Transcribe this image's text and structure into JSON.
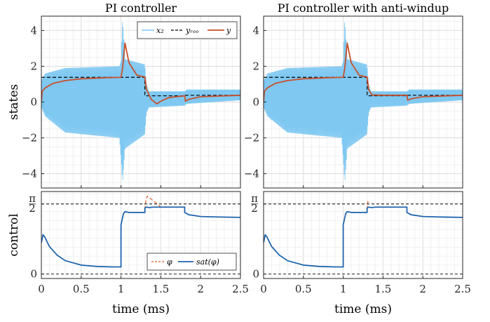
{
  "chart_data": [
    {
      "type": "line",
      "panel": "states",
      "title": "PI controller",
      "xlabel": "time (ms)",
      "ylabel": "states",
      "xlim": [
        0,
        2.5
      ],
      "ylim": [
        -4.8,
        4.8
      ],
      "xticks": [
        "0",
        "0.5",
        "1",
        "1.5",
        "2",
        "2.5"
      ],
      "yticks": [
        "-4",
        "-2",
        "0",
        "2",
        "4"
      ],
      "grid": true,
      "legend": {
        "placement": "top-right",
        "entries": [
          "x₂",
          "yᵣₑₒ",
          "y"
        ]
      },
      "series": [
        {
          "name": "x₂",
          "color": "#7ec8f2",
          "style": "oscillation",
          "envelope_x": [
            0,
            0.05,
            0.3,
            0.98,
            1.0,
            1.02,
            1.05,
            1.3,
            1.32,
            1.35,
            1.8,
            1.83,
            2.5
          ],
          "upper": [
            1.2,
            1.6,
            1.9,
            2.0,
            2.3,
            4.7,
            2.4,
            2.1,
            1.0,
            0.6,
            0.6,
            0.7,
            0.7
          ],
          "lower": [
            -0.3,
            -0.8,
            -1.7,
            -2.0,
            -3.2,
            -4.5,
            -2.6,
            -1.8,
            -0.6,
            -0.3,
            -0.2,
            -0.1,
            0.1
          ]
        },
        {
          "name": "yᵣₑₒ",
          "color": "#000000",
          "style": "dashed",
          "x": [
            0,
            1.0,
            1.0,
            1.3,
            1.3,
            1.8,
            1.8,
            2.5
          ],
          "y": [
            1.38,
            1.38,
            1.38,
            1.38,
            0.35,
            0.35,
            0.38,
            0.38
          ]
        },
        {
          "name": "y",
          "color": "#c8502a",
          "x": [
            0,
            0.01,
            0.05,
            0.15,
            0.3,
            0.5,
            0.8,
            1.0,
            1.02,
            1.05,
            1.1,
            1.2,
            1.3,
            1.32,
            1.38,
            1.45,
            1.5,
            1.6,
            1.8,
            1.81,
            1.85,
            2.0,
            2.5
          ],
          "y": [
            0,
            0.6,
            0.8,
            1.05,
            1.2,
            1.3,
            1.36,
            1.38,
            1.9,
            3.3,
            2.2,
            1.5,
            1.4,
            0.7,
            0.15,
            -0.1,
            0.05,
            0.25,
            0.35,
            0.05,
            0.15,
            0.3,
            0.38
          ]
        }
      ]
    },
    {
      "type": "line",
      "panel": "states",
      "title": "PI controller with anti-windup",
      "xlabel": "time (ms)",
      "ylabel": "",
      "xlim": [
        0,
        2.5
      ],
      "ylim": [
        -4.8,
        4.8
      ],
      "xticks": [
        "0",
        "0.5",
        "1",
        "1.5",
        "2",
        "2.5"
      ],
      "yticks": [
        "-4",
        "-2",
        "0",
        "2",
        "4"
      ],
      "grid": true,
      "series": [
        {
          "name": "x₂",
          "color": "#7ec8f2",
          "style": "oscillation",
          "envelope_x": [
            0,
            0.05,
            0.3,
            0.98,
            1.0,
            1.02,
            1.05,
            1.3,
            1.32,
            1.35,
            1.8,
            1.83,
            2.5
          ],
          "upper": [
            1.2,
            1.6,
            1.9,
            2.0,
            2.3,
            4.7,
            2.4,
            2.1,
            1.0,
            0.6,
            0.6,
            0.7,
            0.7
          ],
          "lower": [
            -0.3,
            -0.8,
            -1.7,
            -2.0,
            -3.2,
            -4.5,
            -2.6,
            -1.8,
            -0.6,
            -0.3,
            -0.2,
            -0.1,
            0.1
          ]
        },
        {
          "name": "yᵣₑₒ",
          "color": "#000000",
          "style": "dashed",
          "x": [
            0,
            1.0,
            1.0,
            1.3,
            1.3,
            1.8,
            1.8,
            2.5
          ],
          "y": [
            1.38,
            1.38,
            1.38,
            1.38,
            0.35,
            0.35,
            0.38,
            0.38
          ]
        },
        {
          "name": "y",
          "color": "#c8502a",
          "x": [
            0,
            0.01,
            0.05,
            0.15,
            0.3,
            0.5,
            0.8,
            1.0,
            1.02,
            1.05,
            1.1,
            1.2,
            1.3,
            1.32,
            1.36,
            1.5,
            1.8,
            1.81,
            1.85,
            2.0,
            2.5
          ],
          "y": [
            0,
            0.6,
            0.8,
            1.05,
            1.2,
            1.3,
            1.36,
            1.38,
            1.9,
            3.3,
            2.2,
            1.5,
            1.4,
            0.7,
            0.4,
            0.38,
            0.38,
            0.1,
            0.18,
            0.3,
            0.38
          ]
        }
      ]
    },
    {
      "type": "line",
      "panel": "control",
      "title": "",
      "xlabel": "time (ms)",
      "ylabel": "control",
      "xlim": [
        0,
        2.5
      ],
      "ylim": [
        -0.1,
        1.85
      ],
      "xticks": [
        "0",
        "0.5",
        "1",
        "1.5",
        "2",
        "2.5"
      ],
      "yticks": [
        "0",
        "π/2"
      ],
      "grid": true,
      "reference_lines": [
        0,
        1.5708
      ],
      "legend": {
        "placement": "bottom-right",
        "entries": [
          "φ",
          "sat(φ)"
        ]
      },
      "series": [
        {
          "name": "φ",
          "color": "#e0622a",
          "style": "dashed",
          "x": [
            1.3,
            1.31,
            1.33,
            1.4,
            1.45,
            1.5
          ],
          "y": [
            1.45,
            1.62,
            1.75,
            1.65,
            1.58,
            1.5
          ]
        },
        {
          "name": "sat(φ)",
          "color": "#1f65ad",
          "x": [
            0,
            0.02,
            0.04,
            0.1,
            0.2,
            0.3,
            0.5,
            0.7,
            0.9,
            1.0,
            1.0,
            1.03,
            1.05,
            1.1,
            1.3,
            1.3,
            1.32,
            1.36,
            1.4,
            1.8,
            1.8,
            1.85,
            2.0,
            2.2,
            2.5
          ],
          "y": [
            0.7,
            0.88,
            0.84,
            0.62,
            0.42,
            0.3,
            0.2,
            0.17,
            0.16,
            0.16,
            1.1,
            1.35,
            1.4,
            1.38,
            1.38,
            1.48,
            1.5,
            1.49,
            1.5,
            1.5,
            1.38,
            1.33,
            1.29,
            1.28,
            1.27
          ]
        }
      ]
    },
    {
      "type": "line",
      "panel": "control",
      "title": "",
      "xlabel": "time (ms)",
      "ylabel": "",
      "xlim": [
        0,
        2.5
      ],
      "ylim": [
        -0.1,
        1.85
      ],
      "xticks": [
        "0",
        "0.5",
        "1",
        "1.5",
        "2",
        "2.5"
      ],
      "yticks": [
        "0",
        "π/2"
      ],
      "grid": true,
      "reference_lines": [
        0,
        1.5708
      ],
      "series": [
        {
          "name": "φ",
          "color": "#e0622a",
          "style": "dashed",
          "x": [
            1.3,
            1.31,
            1.32
          ],
          "y": [
            1.45,
            1.63,
            1.56
          ]
        },
        {
          "name": "sat(φ)",
          "color": "#1f65ad",
          "x": [
            0,
            0.02,
            0.04,
            0.1,
            0.2,
            0.3,
            0.5,
            0.7,
            0.9,
            1.0,
            1.0,
            1.03,
            1.05,
            1.1,
            1.3,
            1.3,
            1.32,
            1.36,
            1.4,
            1.8,
            1.8,
            1.85,
            2.0,
            2.2,
            2.5
          ],
          "y": [
            0.7,
            0.88,
            0.84,
            0.62,
            0.42,
            0.3,
            0.2,
            0.17,
            0.16,
            0.16,
            1.1,
            1.35,
            1.4,
            1.38,
            1.38,
            1.48,
            1.5,
            1.49,
            1.5,
            1.5,
            1.38,
            1.33,
            1.29,
            1.28,
            1.27
          ]
        }
      ]
    }
  ]
}
